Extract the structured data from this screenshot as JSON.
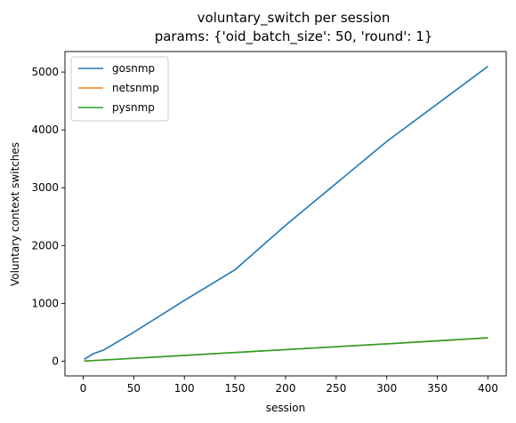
{
  "chart_data": {
    "type": "line",
    "title": "voluntary_switch per session",
    "subtitle": "params: {'oid_batch_size': 50, 'round': 1}",
    "xlabel": "session",
    "ylabel": "Voluntary context switches",
    "xlim": [
      -18,
      418
    ],
    "ylim": [
      -255,
      5355
    ],
    "xticks": [
      0,
      50,
      100,
      150,
      200,
      250,
      300,
      350,
      400
    ],
    "yticks": [
      0,
      1000,
      2000,
      3000,
      4000,
      5000
    ],
    "grid": false,
    "legend_position": "upper left",
    "series": [
      {
        "name": "gosnmp",
        "color": "#1f77b4",
        "x": [
          1,
          10,
          20,
          50,
          100,
          150,
          200,
          300,
          400
        ],
        "y": [
          30,
          130,
          190,
          500,
          1050,
          1580,
          2350,
          3800,
          5100
        ]
      },
      {
        "name": "netsnmp",
        "color": "#ff7f0e",
        "x": [
          1,
          10,
          20,
          50,
          100,
          150,
          200,
          300,
          400
        ],
        "y": [
          1,
          10,
          20,
          50,
          100,
          150,
          200,
          300,
          400
        ]
      },
      {
        "name": "pysnmp",
        "color": "#2ca02c",
        "x": [
          1,
          10,
          20,
          50,
          100,
          150,
          200,
          300,
          400
        ],
        "y": [
          1,
          10,
          20,
          50,
          100,
          150,
          200,
          300,
          405
        ]
      }
    ]
  }
}
